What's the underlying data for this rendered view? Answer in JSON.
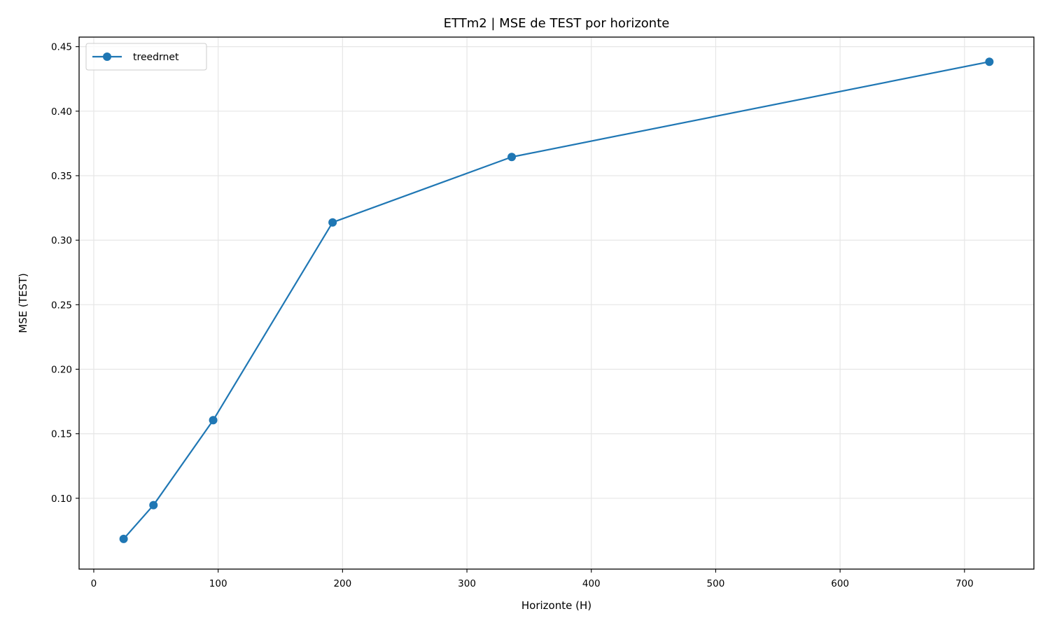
{
  "chart_data": {
    "type": "line",
    "title": "ETTm2 | MSE de TEST por horizonte",
    "xlabel": "Horizonte (H)",
    "ylabel": "MSE (TEST)",
    "xlim": [
      -11.8,
      755.8
    ],
    "ylim": [
      0.0451,
      0.4574
    ],
    "x_ticks": [
      0,
      100,
      200,
      300,
      400,
      500,
      600,
      700
    ],
    "y_ticks": [
      0.1,
      0.15,
      0.2,
      0.25,
      0.3,
      0.35,
      0.4,
      0.45
    ],
    "grid": true,
    "legend_position": "top-left",
    "series": [
      {
        "name": "treedrnet",
        "color": "#1f77b4",
        "marker": "circle",
        "x": [
          24,
          48,
          96,
          192,
          336,
          720
        ],
        "y": [
          0.0685,
          0.0947,
          0.1605,
          0.3138,
          0.3645,
          0.4383
        ]
      }
    ]
  }
}
